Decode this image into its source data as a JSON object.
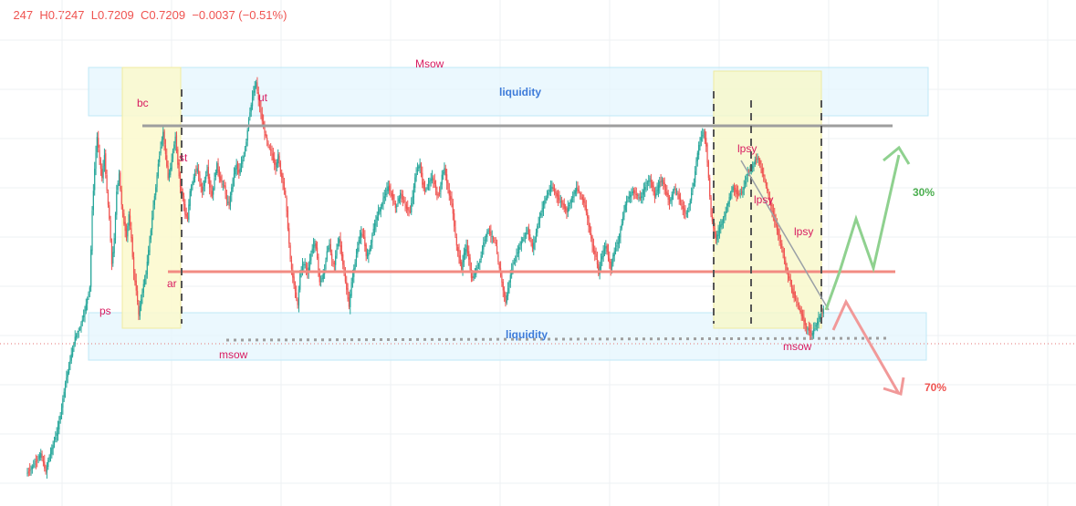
{
  "header": {
    "ohlc_text": "247  H0.7247  L0.7209  C0.7209  −0.0037 (−0.51%)"
  },
  "colors": {
    "up": "#26a69a",
    "down": "#ef5350",
    "annotation": "#d81b60",
    "liquidity_label": "#3d7bd9",
    "up_arrow": "#8fd18f",
    "down_arrow": "#f19999",
    "resistance_line": "#9e9e9e",
    "support_line": "#f28b82",
    "grid": "#eef0f3"
  },
  "annotations": {
    "ps": "ps",
    "bc": "bc",
    "st": "st",
    "ar": "ar",
    "msow_left": "msow",
    "ut": "ut",
    "Msow": "Msow",
    "lpsy1": "lpsy",
    "lpsy2": "lpsy",
    "lpsy3": "lpsy",
    "msow_right": "msow",
    "liquidity_top": "liquidity",
    "liquidity_bottom": "liquidity",
    "pct_up": "30%",
    "pct_down": "70%"
  },
  "chart_data": {
    "type": "candlestick",
    "title": "",
    "xlabel": "",
    "ylabel": "",
    "grid": true,
    "y_scale": "price (axis not visible)",
    "phases": [
      "ps",
      "bc",
      "ar",
      "st",
      "ut",
      "Msow",
      "lpsy",
      "lpsy",
      "lpsy",
      "msow"
    ],
    "zones": [
      "liquidity (upper)",
      "liquidity (lower)"
    ],
    "scenarios": [
      {
        "direction": "up",
        "probability_label": "30%"
      },
      {
        "direction": "down",
        "probability_label": "70%"
      }
    ],
    "path": [
      [
        0,
        520
      ],
      [
        4,
        514
      ],
      [
        8,
        506
      ],
      [
        12,
        498
      ],
      [
        16,
        518
      ],
      [
        18,
        505
      ],
      [
        22,
        488
      ],
      [
        26,
        470
      ],
      [
        28,
        455
      ],
      [
        32,
        420
      ],
      [
        36,
        395
      ],
      [
        40,
        370
      ],
      [
        44,
        360
      ],
      [
        48,
        340
      ],
      [
        52,
        315
      ],
      [
        54,
        232
      ],
      [
        56,
        185
      ],
      [
        58,
        150
      ],
      [
        60,
        175
      ],
      [
        62,
        195
      ],
      [
        64,
        170
      ],
      [
        66,
        210
      ],
      [
        68,
        240
      ],
      [
        70,
        290
      ],
      [
        72,
        262
      ],
      [
        74,
        210
      ],
      [
        76,
        190
      ],
      [
        78,
        225
      ],
      [
        80,
        245
      ],
      [
        82,
        260
      ],
      [
        84,
        235
      ],
      [
        86,
        262
      ],
      [
        88,
        300
      ],
      [
        90,
        318
      ],
      [
        92,
        345
      ],
      [
        94,
        328
      ],
      [
        96,
        312
      ],
      [
        98,
        300
      ],
      [
        100,
        275
      ],
      [
        102,
        252
      ],
      [
        104,
        225
      ],
      [
        106,
        205
      ],
      [
        108,
        180
      ],
      [
        110,
        160
      ],
      [
        112,
        145
      ],
      [
        114,
        170
      ],
      [
        116,
        195
      ],
      [
        118,
        185
      ],
      [
        120,
        165
      ],
      [
        122,
        150
      ],
      [
        124,
        180
      ],
      [
        126,
        205
      ],
      [
        128,
        215
      ],
      [
        130,
        235
      ],
      [
        132,
        240
      ],
      [
        134,
        210
      ],
      [
        136,
        200
      ],
      [
        138,
        190
      ],
      [
        140,
        185
      ],
      [
        142,
        200
      ],
      [
        144,
        210
      ],
      [
        146,
        198
      ],
      [
        148,
        185
      ],
      [
        150,
        205
      ],
      [
        152,
        215
      ],
      [
        154,
        196
      ],
      [
        156,
        180
      ],
      [
        158,
        195
      ],
      [
        160,
        200
      ],
      [
        162,
        205
      ],
      [
        164,
        220
      ],
      [
        166,
        225
      ],
      [
        168,
        205
      ],
      [
        170,
        190
      ],
      [
        172,
        180
      ],
      [
        174,
        190
      ],
      [
        176,
        180
      ],
      [
        178,
        170
      ],
      [
        180,
        155
      ],
      [
        182,
        130
      ],
      [
        184,
        115
      ],
      [
        186,
        100
      ],
      [
        188,
        90
      ],
      [
        190,
        110
      ],
      [
        192,
        125
      ],
      [
        194,
        140
      ],
      [
        196,
        150
      ],
      [
        198,
        160
      ],
      [
        200,
        165
      ],
      [
        202,
        175
      ],
      [
        204,
        185
      ],
      [
        206,
        170
      ],
      [
        208,
        190
      ],
      [
        210,
        200
      ],
      [
        212,
        215
      ],
      [
        214,
        250
      ],
      [
        216,
        285
      ],
      [
        218,
        305
      ],
      [
        220,
        320
      ],
      [
        222,
        335
      ],
      [
        224,
        300
      ],
      [
        226,
        290
      ],
      [
        228,
        290
      ],
      [
        230,
        300
      ],
      [
        232,
        285
      ],
      [
        234,
        272
      ],
      [
        236,
        265
      ],
      [
        238,
        282
      ],
      [
        240,
        310
      ],
      [
        242,
        305
      ],
      [
        244,
        296
      ],
      [
        246,
        275
      ],
      [
        248,
        268
      ],
      [
        250,
        285
      ],
      [
        252,
        290
      ],
      [
        254,
        272
      ],
      [
        256,
        262
      ],
      [
        258,
        280
      ],
      [
        260,
        300
      ],
      [
        262,
        318
      ],
      [
        264,
        336
      ],
      [
        266,
        310
      ],
      [
        268,
        295
      ],
      [
        270,
        280
      ],
      [
        272,
        262
      ],
      [
        274,
        256
      ],
      [
        276,
        260
      ],
      [
        278,
        280
      ],
      [
        280,
        278
      ],
      [
        282,
        265
      ],
      [
        284,
        250
      ],
      [
        286,
        242
      ],
      [
        288,
        232
      ],
      [
        290,
        228
      ],
      [
        292,
        218
      ],
      [
        294,
        212
      ],
      [
        296,
        205
      ],
      [
        298,
        212
      ],
      [
        300,
        218
      ],
      [
        302,
        228
      ],
      [
        304,
        222
      ],
      [
        306,
        212
      ],
      [
        308,
        218
      ],
      [
        310,
        226
      ],
      [
        312,
        230
      ],
      [
        314,
        232
      ],
      [
        316,
        215
      ],
      [
        318,
        195
      ],
      [
        320,
        185
      ],
      [
        322,
        180
      ],
      [
        324,
        202
      ],
      [
        326,
        210
      ],
      [
        328,
        205
      ],
      [
        330,
        198
      ],
      [
        332,
        195
      ],
      [
        334,
        202
      ],
      [
        336,
        215
      ],
      [
        338,
        212
      ],
      [
        340,
        192
      ],
      [
        342,
        185
      ],
      [
        344,
        200
      ],
      [
        346,
        215
      ],
      [
        348,
        222
      ],
      [
        350,
        248
      ],
      [
        352,
        270
      ],
      [
        354,
        282
      ],
      [
        356,
        295
      ],
      [
        358,
        278
      ],
      [
        360,
        270
      ],
      [
        362,
        284
      ],
      [
        364,
        305
      ],
      [
        366,
        303
      ],
      [
        368,
        295
      ],
      [
        370,
        290
      ],
      [
        372,
        280
      ],
      [
        374,
        266
      ],
      [
        376,
        258
      ],
      [
        378,
        252
      ],
      [
        380,
        258
      ],
      [
        382,
        262
      ],
      [
        384,
        268
      ],
      [
        386,
        288
      ],
      [
        388,
        302
      ],
      [
        390,
        318
      ],
      [
        392,
        332
      ],
      [
        394,
        316
      ],
      [
        396,
        302
      ],
      [
        398,
        290
      ],
      [
        400,
        284
      ],
      [
        402,
        276
      ],
      [
        404,
        268
      ],
      [
        406,
        262
      ],
      [
        408,
        258
      ],
      [
        410,
        252
      ],
      [
        412,
        262
      ],
      [
        414,
        272
      ],
      [
        416,
        262
      ],
      [
        418,
        248
      ],
      [
        420,
        238
      ],
      [
        422,
        228
      ],
      [
        424,
        220
      ],
      [
        426,
        214
      ],
      [
        428,
        208
      ],
      [
        430,
        205
      ],
      [
        432,
        210
      ],
      [
        434,
        215
      ],
      [
        436,
        220
      ],
      [
        438,
        222
      ],
      [
        440,
        228
      ],
      [
        442,
        232
      ],
      [
        444,
        224
      ],
      [
        446,
        218
      ],
      [
        448,
        212
      ],
      [
        450,
        206
      ],
      [
        452,
        210
      ],
      [
        454,
        216
      ],
      [
        456,
        222
      ],
      [
        458,
        232
      ],
      [
        460,
        248
      ],
      [
        462,
        262
      ],
      [
        464,
        275
      ],
      [
        466,
        282
      ],
      [
        468,
        300
      ],
      [
        470,
        286
      ],
      [
        472,
        275
      ],
      [
        474,
        270
      ],
      [
        476,
        282
      ],
      [
        478,
        295
      ],
      [
        480,
        280
      ],
      [
        482,
        272
      ],
      [
        484,
        265
      ],
      [
        486,
        252
      ],
      [
        488,
        238
      ],
      [
        490,
        224
      ],
      [
        492,
        218
      ],
      [
        494,
        214
      ],
      [
        496,
        210
      ],
      [
        498,
        212
      ],
      [
        500,
        215
      ],
      [
        502,
        218
      ],
      [
        504,
        212
      ],
      [
        506,
        205
      ],
      [
        508,
        200
      ],
      [
        510,
        196
      ],
      [
        512,
        205
      ],
      [
        514,
        216
      ],
      [
        516,
        208
      ],
      [
        518,
        200
      ],
      [
        520,
        198
      ],
      [
        522,
        205
      ],
      [
        524,
        214
      ],
      [
        526,
        222
      ],
      [
        528,
        214
      ],
      [
        530,
        206
      ],
      [
        532,
        210
      ],
      [
        534,
        218
      ],
      [
        536,
        226
      ],
      [
        538,
        232
      ],
      [
        540,
        234
      ],
      [
        542,
        226
      ],
      [
        544,
        212
      ],
      [
        546,
        200
      ],
      [
        548,
        176
      ],
      [
        550,
        160
      ],
      [
        552,
        150
      ],
      [
        554,
        145
      ],
      [
        556,
        160
      ],
      [
        558,
        195
      ],
      [
        560,
        236
      ],
      [
        562,
        250
      ],
      [
        564,
        262
      ],
      [
        566,
        254
      ],
      [
        568,
        246
      ],
      [
        570,
        240
      ],
      [
        572,
        232
      ],
      [
        574,
        222
      ],
      [
        576,
        212
      ],
      [
        578,
        205
      ],
      [
        580,
        210
      ],
      [
        582,
        214
      ],
      [
        584,
        212
      ],
      [
        586,
        210
      ],
      [
        588,
        198
      ],
      [
        590,
        190
      ],
      [
        592,
        186
      ],
      [
        594,
        182
      ],
      [
        596,
        176
      ],
      [
        598,
        172
      ],
      [
        600,
        180
      ],
      [
        602,
        190
      ],
      [
        604,
        198
      ],
      [
        606,
        210
      ],
      [
        608,
        220
      ],
      [
        610,
        232
      ],
      [
        612,
        242
      ],
      [
        614,
        252
      ],
      [
        616,
        262
      ],
      [
        618,
        272
      ],
      [
        620,
        285
      ],
      [
        622,
        298
      ],
      [
        624,
        306
      ],
      [
        626,
        318
      ],
      [
        628,
        326
      ],
      [
        630,
        332
      ],
      [
        632,
        338
      ],
      [
        634,
        346
      ],
      [
        636,
        352
      ],
      [
        638,
        360
      ],
      [
        640,
        362
      ],
      [
        642,
        368
      ],
      [
        644,
        362
      ],
      [
        646,
        356
      ],
      [
        648,
        350
      ],
      [
        650,
        344
      ],
      [
        652,
        340
      ]
    ]
  }
}
